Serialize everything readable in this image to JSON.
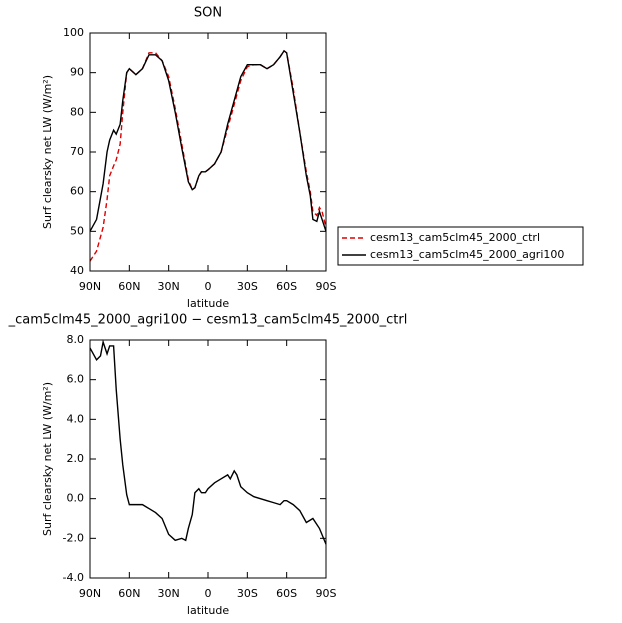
{
  "chart_data": [
    {
      "type": "line",
      "title": "SON",
      "xlabel": "latitude",
      "ylabel": "Surf clearsky net LW (W/m²)",
      "x": [
        90,
        85,
        80,
        77,
        75,
        72,
        70,
        67,
        65,
        62,
        60,
        55,
        50,
        45,
        40,
        35,
        30,
        25,
        20,
        15,
        12,
        10,
        7,
        5,
        2,
        0,
        -5,
        -10,
        -15,
        -20,
        -25,
        -30,
        -35,
        -40,
        -45,
        -50,
        -55,
        -58,
        -60,
        -65,
        -70,
        -75,
        -78,
        -80,
        -83,
        -85,
        -87,
        -90
      ],
      "series": [
        {
          "name": "cesm13_cam5clm45_2000_ctrl",
          "color": "#dd0000",
          "dash": true,
          "values": [
            42.5,
            45,
            51,
            58,
            64,
            66.5,
            68,
            72,
            80,
            90,
            91,
            89.5,
            91,
            95,
            95,
            93,
            89,
            81,
            72,
            63,
            60.5,
            61,
            64,
            65,
            65,
            65.5,
            67,
            70,
            76,
            82,
            88,
            91.5,
            92,
            92,
            91,
            92,
            94,
            95.5,
            95,
            86,
            75,
            65,
            60,
            55,
            54,
            56,
            55,
            51
          ]
        },
        {
          "name": "cesm13_cam5clm45_2000_agri100",
          "color": "#000000",
          "dash": false,
          "values": [
            50,
            53,
            62,
            70,
            73,
            75.5,
            74.5,
            77,
            83,
            90,
            91,
            89.5,
            91,
            94.5,
            94.5,
            93,
            88,
            80,
            71,
            62.5,
            60.5,
            61,
            64,
            65,
            65,
            65.5,
            67,
            70,
            77,
            83,
            89,
            92,
            92,
            92,
            91,
            92,
            94,
            95.5,
            95,
            85,
            75,
            64,
            59,
            53,
            52.5,
            55,
            53,
            50
          ]
        }
      ],
      "xlim": [
        90,
        -90
      ],
      "xticks": [
        {
          "value": 90,
          "label": "90N"
        },
        {
          "value": 60,
          "label": "60N"
        },
        {
          "value": 30,
          "label": "30N"
        },
        0,
        {
          "value": -30,
          "label": "30S"
        },
        {
          "value": -60,
          "label": "60S"
        },
        {
          "value": -90,
          "label": "90S"
        }
      ],
      "ylim": [
        40,
        100
      ],
      "yticks": [
        40,
        50,
        60,
        70,
        80,
        90,
        100
      ],
      "legend": "right"
    },
    {
      "type": "line",
      "title": "_cam5clm45_2000_agri100 − cesm13_cam5clm45_2000_ctrl",
      "xlabel": "latitude",
      "ylabel": "Surf clearsky net LW (W/m²)",
      "x": [
        90,
        85,
        82,
        80,
        77,
        75,
        72,
        70,
        67,
        65,
        62,
        60,
        55,
        50,
        45,
        40,
        35,
        30,
        25,
        20,
        17,
        15,
        12,
        10,
        7,
        5,
        2,
        0,
        -5,
        -10,
        -15,
        -17,
        -20,
        -22,
        -25,
        -30,
        -35,
        -40,
        -45,
        -50,
        -55,
        -58,
        -60,
        -65,
        -70,
        -75,
        -80,
        -85,
        -90
      ],
      "series": [
        {
          "color": "#000000",
          "dash": false,
          "values": [
            7.6,
            7.0,
            7.2,
            7.9,
            7.3,
            7.7,
            7.7,
            5.5,
            3.0,
            1.7,
            0.2,
            -0.3,
            -0.3,
            -0.3,
            -0.5,
            -0.7,
            -1.0,
            -1.8,
            -2.1,
            -2.0,
            -2.1,
            -1.5,
            -0.8,
            0.3,
            0.5,
            0.3,
            0.3,
            0.5,
            0.8,
            1.0,
            1.2,
            1.0,
            1.4,
            1.2,
            0.6,
            0.3,
            0.1,
            0.0,
            -0.1,
            -0.2,
            -0.3,
            -0.1,
            -0.1,
            -0.3,
            -0.6,
            -1.2,
            -1.0,
            -1.5,
            -2.3
          ]
        }
      ],
      "xlim": [
        90,
        -90
      ],
      "xticks": [
        {
          "value": 90,
          "label": "90N"
        },
        {
          "value": 60,
          "label": "60N"
        },
        {
          "value": 30,
          "label": "30N"
        },
        0,
        {
          "value": -30,
          "label": "30S"
        },
        {
          "value": -60,
          "label": "60S"
        },
        {
          "value": -90,
          "label": "90S"
        }
      ],
      "ylim": [
        -4,
        8
      ],
      "yticks": [
        {
          "value": -4,
          "label": "-4.0"
        },
        {
          "value": -2,
          "label": "-2.0"
        },
        {
          "value": 0,
          "label": "0.0"
        },
        {
          "value": 2,
          "label": "2.0"
        },
        {
          "value": 4,
          "label": "4.0"
        },
        {
          "value": 6,
          "label": "6.0"
        },
        {
          "value": 8,
          "label": "8.0"
        }
      ]
    }
  ]
}
